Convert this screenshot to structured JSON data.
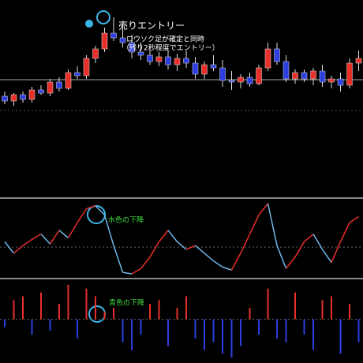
{
  "chart_data": [
    {
      "type": "candlestick",
      "open": [
        128,
        122,
        130,
        124,
        136,
        132,
        146,
        138,
        158,
        154,
        176,
        188,
        208,
        202,
        196,
        184,
        180,
        172,
        178,
        168,
        176,
        170,
        156,
        168,
        164,
        148,
        146,
        152,
        144,
        164,
        188,
        172,
        150,
        158,
        150,
        160,
        146,
        150,
        142,
        170
      ],
      "high": [
        134,
        132,
        134,
        140,
        142,
        150,
        152,
        162,
        166,
        180,
        192,
        215,
        228,
        220,
        206,
        196,
        190,
        184,
        186,
        182,
        186,
        178,
        172,
        180,
        174,
        160,
        156,
        158,
        168,
        196,
        196,
        180,
        162,
        162,
        164,
        168,
        154,
        158,
        176,
        186
      ],
      "low": [
        118,
        116,
        120,
        120,
        130,
        128,
        134,
        136,
        150,
        150,
        170,
        184,
        198,
        190,
        176,
        174,
        168,
        166,
        162,
        160,
        164,
        150,
        150,
        160,
        140,
        136,
        138,
        140,
        142,
        160,
        168,
        146,
        144,
        146,
        142,
        140,
        138,
        134,
        138,
        160
      ],
      "close": [
        122,
        130,
        124,
        136,
        132,
        146,
        138,
        158,
        154,
        176,
        188,
        208,
        202,
        196,
        184,
        180,
        172,
        178,
        168,
        176,
        170,
        156,
        168,
        164,
        148,
        146,
        152,
        144,
        164,
        188,
        172,
        150,
        158,
        150,
        160,
        146,
        150,
        142,
        170,
        176
      ],
      "color_up": "#e8302a",
      "color_down": "#2d3fe0",
      "ylim": [
        0,
        250
      ],
      "level": 149,
      "dashed_level": 110,
      "annotation": "売りエントリー",
      "note_lines": [
        "ロウソク足が確定と同時",
        "（残り2秒程度でエントリー）"
      ]
    },
    {
      "type": "line",
      "values": [
        45,
        30,
        40,
        48,
        55,
        42,
        60,
        50,
        70,
        88,
        92,
        80,
        40,
        5,
        3,
        10,
        25,
        45,
        60,
        45,
        35,
        40,
        30,
        20,
        12,
        8,
        30,
        55,
        80,
        95,
        40,
        10,
        25,
        45,
        55,
        35,
        18,
        45,
        70,
        78
      ],
      "color_up": "#e8302a",
      "color_down": "#6fb6e8",
      "ylim": [
        0,
        100
      ],
      "dashed_level": 38,
      "annotation": "水色の下降"
    },
    {
      "type": "bar",
      "values": [
        -10,
        25,
        30,
        -20,
        35,
        -15,
        20,
        45,
        -25,
        40,
        30,
        10,
        15,
        -30,
        -40,
        -20,
        20,
        25,
        -35,
        15,
        30,
        -25,
        -40,
        -30,
        -45,
        -50,
        -35,
        15,
        -20,
        40,
        -25,
        -30,
        35,
        -20,
        -40,
        25,
        30,
        -45,
        20,
        -30
      ],
      "color_up": "#e8302a",
      "color_down": "#2d3fe0",
      "ylim": [
        -55,
        50
      ],
      "dashed_level": 0,
      "annotation": "青色の下降"
    }
  ]
}
